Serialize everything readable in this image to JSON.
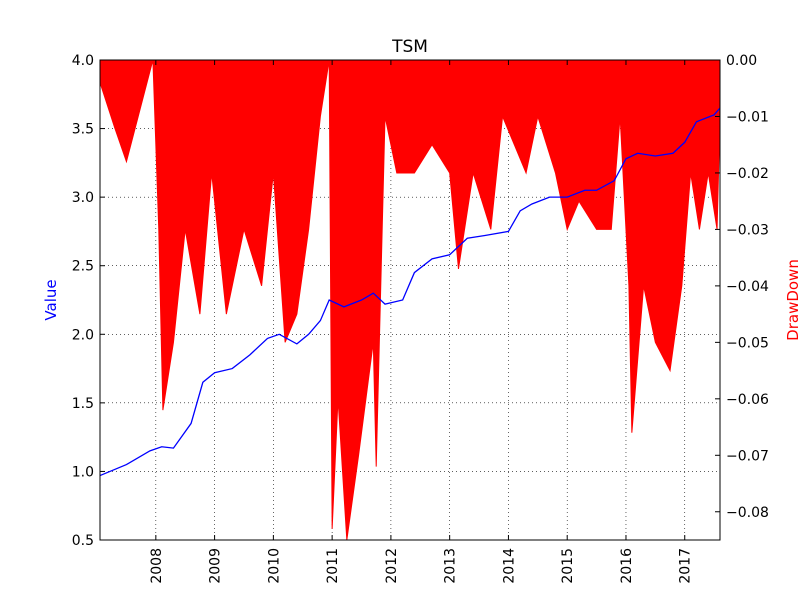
{
  "chart_data": {
    "type": "line",
    "title": "TSM",
    "ylabel": "Value",
    "y2label": "DrawDown",
    "ylim": [
      0.5,
      4.0
    ],
    "y2lim": [
      -0.085,
      0.0
    ],
    "xlim": [
      2007.05,
      2017.6
    ],
    "x_ticks": [
      {
        "value": 2008,
        "label": "2008"
      },
      {
        "value": 2009,
        "label": "2009"
      },
      {
        "value": 2010,
        "label": "2010"
      },
      {
        "value": 2011,
        "label": "2011"
      },
      {
        "value": 2012,
        "label": "2012"
      },
      {
        "value": 2013,
        "label": "2013"
      },
      {
        "value": 2014,
        "label": "2014"
      },
      {
        "value": 2015,
        "label": "2015"
      },
      {
        "value": 2016,
        "label": "2016"
      },
      {
        "value": 2017,
        "label": "2017"
      }
    ],
    "y_ticks": [
      {
        "value": 0.5,
        "label": "0.5"
      },
      {
        "value": 1.0,
        "label": "1.0"
      },
      {
        "value": 1.5,
        "label": "1.5"
      },
      {
        "value": 2.0,
        "label": "2.0"
      },
      {
        "value": 2.5,
        "label": "2.5"
      },
      {
        "value": 3.0,
        "label": "3.0"
      },
      {
        "value": 3.5,
        "label": "3.5"
      },
      {
        "value": 4.0,
        "label": "4.0"
      }
    ],
    "y2_ticks": [
      {
        "value": 0.0,
        "label": "0.00"
      },
      {
        "value": -0.01,
        "label": "−0.01"
      },
      {
        "value": -0.02,
        "label": "−0.02"
      },
      {
        "value": -0.03,
        "label": "−0.03"
      },
      {
        "value": -0.04,
        "label": "−0.04"
      },
      {
        "value": -0.05,
        "label": "−0.05"
      },
      {
        "value": -0.06,
        "label": "−0.06"
      },
      {
        "value": -0.07,
        "label": "−0.07"
      },
      {
        "value": -0.08,
        "label": "−0.08"
      }
    ],
    "grid": true,
    "series": [
      {
        "axis": "left",
        "type": "line",
        "color": "#0000ff",
        "x": [
          2007.05,
          2007.5,
          2007.9,
          2008.1,
          2008.3,
          2008.6,
          2008.8,
          2009.0,
          2009.3,
          2009.6,
          2009.9,
          2010.1,
          2010.4,
          2010.6,
          2010.8,
          2010.95,
          2011.2,
          2011.5,
          2011.7,
          2011.9,
          2012.2,
          2012.4,
          2012.7,
          2013.0,
          2013.3,
          2013.6,
          2014.0,
          2014.2,
          2014.4,
          2014.7,
          2015.0,
          2015.3,
          2015.5,
          2015.8,
          2016.0,
          2016.2,
          2016.5,
          2016.8,
          2017.0,
          2017.2,
          2017.5,
          2017.6
        ],
        "y": [
          0.97,
          1.05,
          1.15,
          1.18,
          1.17,
          1.35,
          1.65,
          1.72,
          1.75,
          1.85,
          1.97,
          2.0,
          1.93,
          2.0,
          2.1,
          2.25,
          2.2,
          2.25,
          2.3,
          2.22,
          2.25,
          2.45,
          2.55,
          2.58,
          2.7,
          2.72,
          2.75,
          2.9,
          2.95,
          3.0,
          3.0,
          3.05,
          3.05,
          3.12,
          3.28,
          3.32,
          3.3,
          3.32,
          3.4,
          3.55,
          3.6,
          3.65
        ]
      },
      {
        "axis": "right",
        "type": "area",
        "color": "#ff0000",
        "x": [
          2007.05,
          2007.3,
          2007.5,
          2007.7,
          2007.95,
          2008.05,
          2008.12,
          2008.3,
          2008.5,
          2008.75,
          2008.95,
          2009.2,
          2009.5,
          2009.8,
          2010.0,
          2010.2,
          2010.4,
          2010.6,
          2010.8,
          2010.95,
          2011.0,
          2011.1,
          2011.25,
          2011.45,
          2011.7,
          2011.75,
          2011.9,
          2012.1,
          2012.4,
          2012.7,
          2013.0,
          2013.15,
          2013.4,
          2013.7,
          2013.9,
          2014.1,
          2014.3,
          2014.5,
          2014.8,
          2015.0,
          2015.2,
          2015.5,
          2015.75,
          2015.9,
          2016.05,
          2016.1,
          2016.3,
          2016.5,
          2016.75,
          2016.95,
          2017.1,
          2017.25,
          2017.4,
          2017.55,
          2017.6
        ],
        "y": [
          -0.004,
          -0.012,
          -0.018,
          -0.01,
          0.0,
          -0.03,
          -0.062,
          -0.05,
          -0.03,
          -0.045,
          -0.02,
          -0.045,
          -0.03,
          -0.04,
          -0.02,
          -0.05,
          -0.045,
          -0.03,
          -0.01,
          0.0,
          -0.083,
          -0.06,
          -0.085,
          -0.07,
          -0.05,
          -0.072,
          -0.01,
          -0.02,
          -0.02,
          -0.015,
          -0.02,
          -0.037,
          -0.02,
          -0.03,
          -0.01,
          -0.015,
          -0.02,
          -0.01,
          -0.02,
          -0.03,
          -0.025,
          -0.03,
          -0.03,
          -0.01,
          -0.04,
          -0.066,
          -0.04,
          -0.05,
          -0.055,
          -0.04,
          -0.02,
          -0.03,
          -0.02,
          -0.03,
          -0.01
        ]
      }
    ]
  }
}
